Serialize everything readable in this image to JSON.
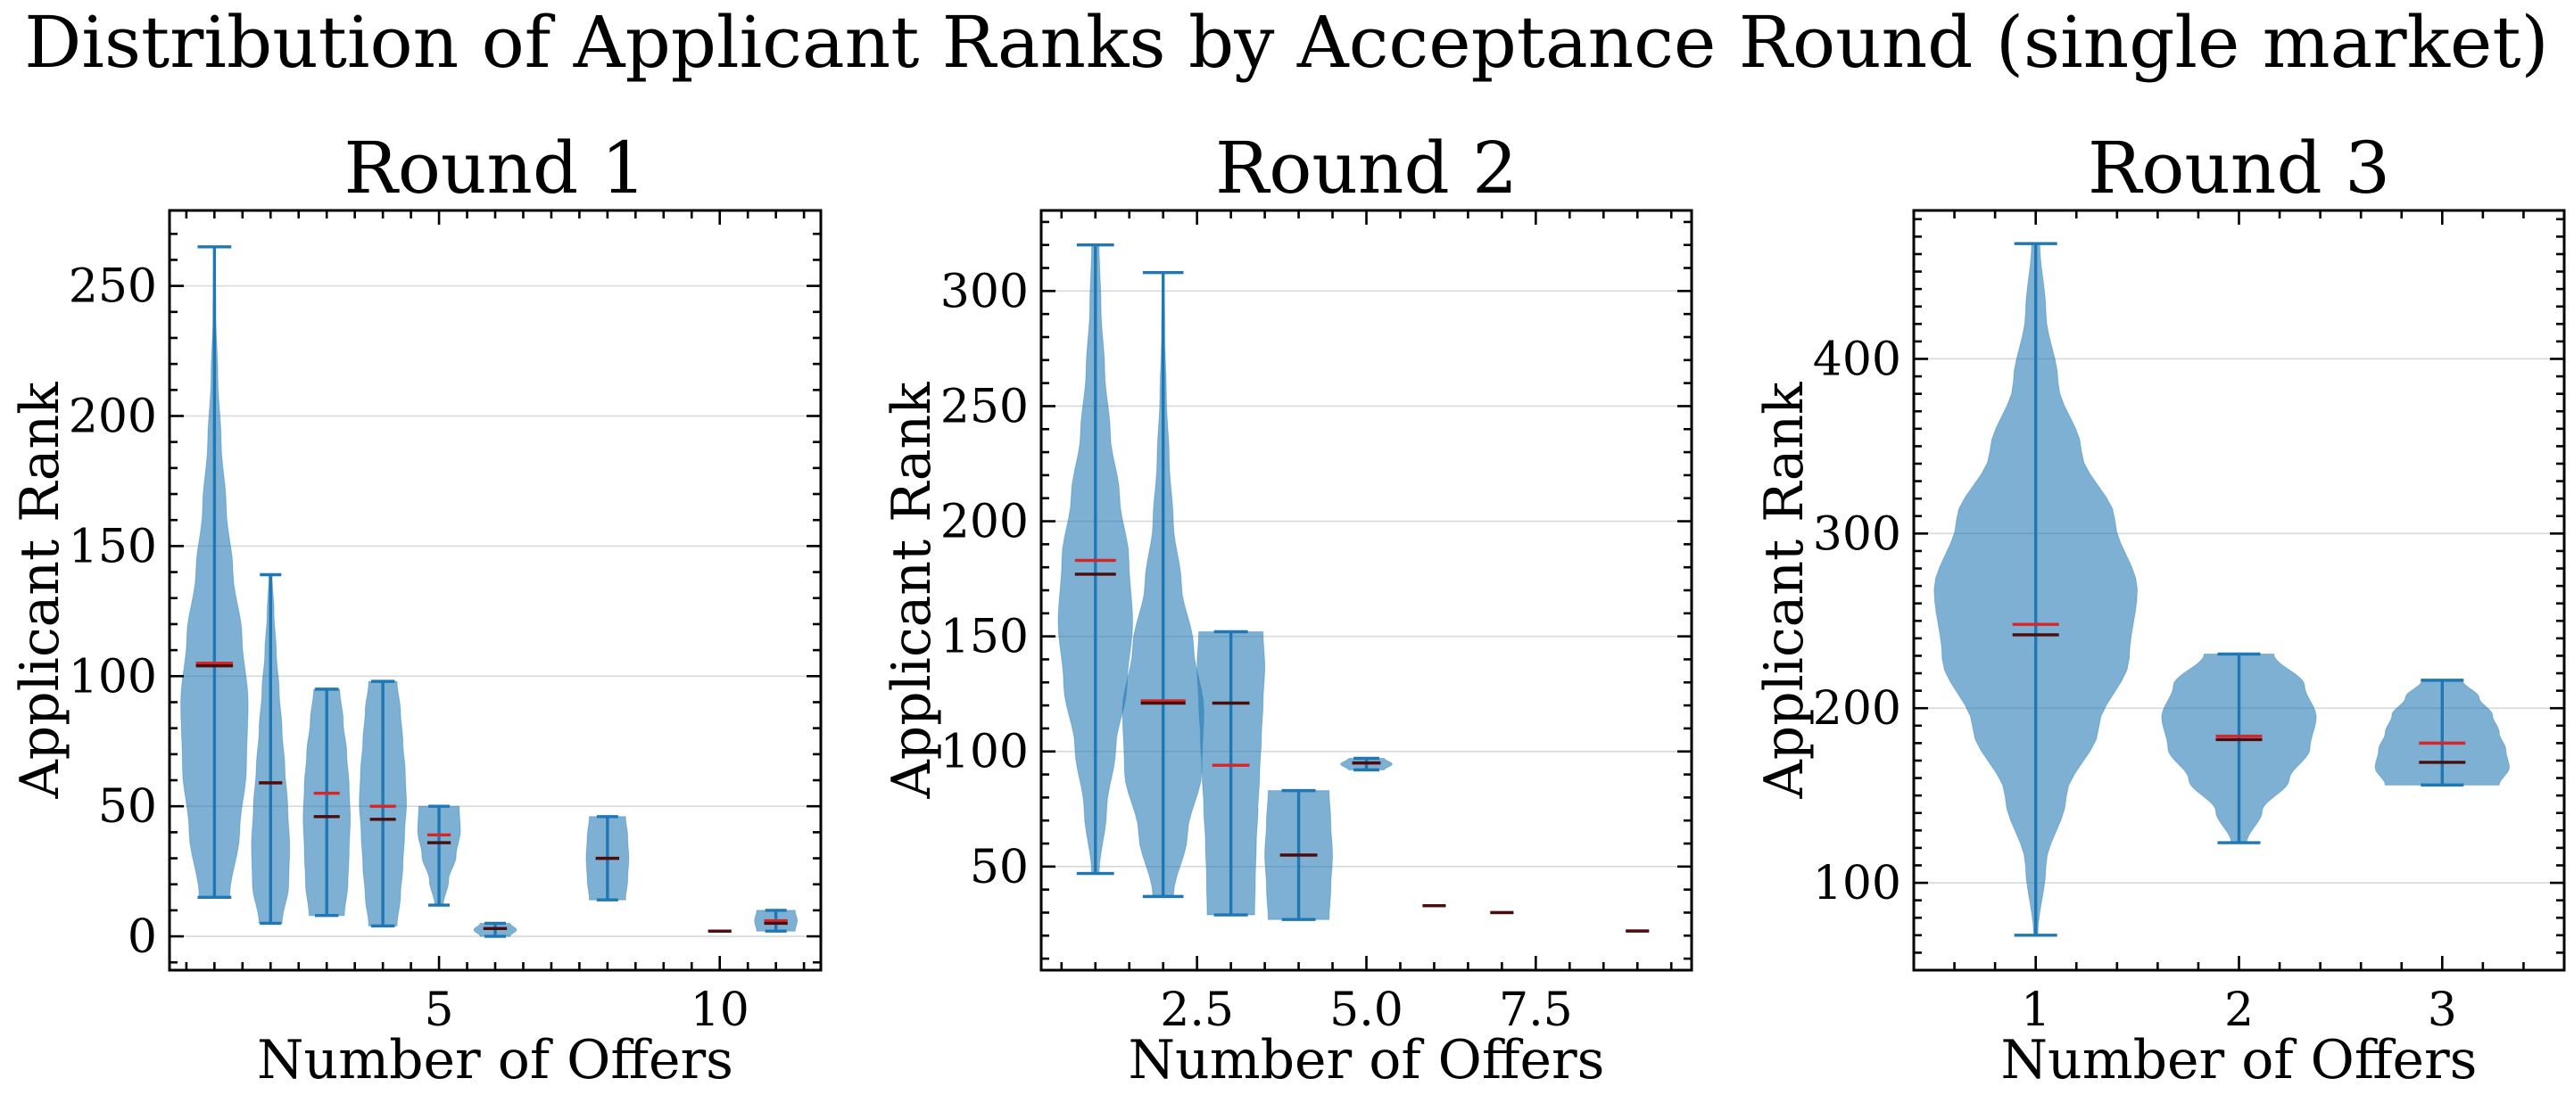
{
  "figure_title": "Distribution of Applicant Ranks by Acceptance Round (single market)",
  "colors": {
    "violin_fill": "#1f77b4",
    "whisker": "#1f77b4",
    "mean_line": "#d62728",
    "median_line": "#4a0d0d",
    "grid": "#d9d9d9"
  },
  "chart_data": [
    {
      "type": "violin",
      "title": "Round 1",
      "xlabel": "Number of Offers",
      "ylabel": "Applicant Rank",
      "xlim": [
        0.2,
        11.8
      ],
      "ylim": [
        -13,
        279
      ],
      "xticks": [
        5,
        10
      ],
      "xtick_labels": [
        "5",
        "10"
      ],
      "yticks": [
        0,
        50,
        100,
        150,
        200,
        250
      ],
      "ytick_labels": [
        "0",
        "50",
        "100",
        "150",
        "200",
        "250"
      ],
      "grid": true,
      "violins": [
        {
          "x": 1,
          "min": 15,
          "max": 265,
          "mean": 105,
          "median": 104,
          "half_width": 0.6,
          "shape": [
            0.45,
            0.75,
            0.95,
            1.0,
            0.82,
            0.55,
            0.35,
            0.2,
            0.1,
            0.04,
            0.02
          ]
        },
        {
          "x": 2,
          "min": 5,
          "max": 139,
          "mean": 59,
          "median": 59,
          "half_width": 0.34,
          "shape": [
            0.6,
            0.95,
            1.0,
            0.9,
            0.75,
            0.6,
            0.45,
            0.3,
            0.18,
            0.08
          ]
        },
        {
          "x": 3,
          "min": 8,
          "max": 95,
          "mean": 55,
          "median": 46,
          "half_width": 0.42,
          "shape": [
            0.75,
            0.9,
            0.95,
            1.0,
            0.95,
            0.85,
            0.7,
            0.55
          ]
        },
        {
          "x": 4,
          "min": 4,
          "max": 98,
          "mean": 50,
          "median": 45,
          "half_width": 0.42,
          "shape": [
            0.6,
            0.75,
            0.85,
            0.92,
            1.0,
            0.95,
            0.85,
            0.75,
            0.6
          ]
        },
        {
          "x": 5,
          "min": 12,
          "max": 50,
          "mean": 39,
          "median": 36,
          "half_width": 0.38,
          "shape": [
            0.2,
            0.45,
            0.8,
            1.0,
            0.95
          ]
        },
        {
          "x": 6,
          "min": 0,
          "max": 5,
          "mean": 3,
          "median": 3,
          "half_width": 0.38,
          "shape": [
            0.7,
            1.0,
            0.7
          ]
        },
        {
          "x": 8,
          "min": 14,
          "max": 46,
          "mean": 30,
          "median": 30,
          "half_width": 0.38,
          "shape": [
            0.85,
            0.95,
            1.0,
            0.95,
            0.85
          ]
        },
        {
          "x": 10,
          "min": 2,
          "max": 2,
          "mean": 2,
          "median": 2,
          "half_width": 0.2,
          "shape": [
            1
          ]
        },
        {
          "x": 11,
          "min": 2,
          "max": 10,
          "mean": 6,
          "median": 5,
          "half_width": 0.38,
          "shape": [
            0.9,
            1.0,
            0.9
          ]
        }
      ]
    },
    {
      "type": "violin",
      "title": "Round 2",
      "xlabel": "Number of Offers",
      "ylabel": "Applicant Rank",
      "xlim": [
        0.2,
        9.8
      ],
      "ylim": [
        5,
        335
      ],
      "xticks": [
        2.5,
        5.0,
        7.5
      ],
      "xtick_labels": [
        "2.5",
        "5.0",
        "7.5"
      ],
      "yticks": [
        50,
        100,
        150,
        200,
        250,
        300
      ],
      "ytick_labels": [
        "50",
        "100",
        "150",
        "200",
        "250",
        "300"
      ],
      "grid": true,
      "violins": [
        {
          "x": 1,
          "min": 47,
          "max": 320,
          "mean": 183,
          "median": 177,
          "half_width": 0.55,
          "shape": [
            0.1,
            0.3,
            0.55,
            0.85,
            1.0,
            0.9,
            0.65,
            0.4,
            0.25,
            0.15,
            0.1
          ]
        },
        {
          "x": 2,
          "min": 37,
          "max": 308,
          "mean": 122,
          "median": 121,
          "half_width": 0.6,
          "shape": [
            0.25,
            0.6,
            0.95,
            1.0,
            0.75,
            0.45,
            0.25,
            0.15,
            0.08,
            0.04,
            0.02
          ]
        },
        {
          "x": 3,
          "min": 29,
          "max": 152,
          "mean": 94,
          "median": 121,
          "half_width": 0.5,
          "shape": [
            0.7,
            0.72,
            0.75,
            0.8,
            0.85,
            0.9,
            0.95,
            1.0,
            0.95
          ]
        },
        {
          "x": 4,
          "min": 27,
          "max": 83,
          "mean": 55,
          "median": 55,
          "half_width": 0.5,
          "shape": [
            0.9,
            0.95,
            1.0,
            0.95,
            0.9
          ]
        },
        {
          "x": 5,
          "min": 92,
          "max": 97,
          "mean": 95,
          "median": 95,
          "half_width": 0.38,
          "shape": [
            0.7,
            1.0,
            0.7
          ]
        },
        {
          "x": 6,
          "min": 33,
          "max": 33,
          "mean": 33,
          "median": 33,
          "half_width": 0.2,
          "shape": [
            1
          ]
        },
        {
          "x": 7,
          "min": 30,
          "max": 30,
          "mean": 30,
          "median": 30,
          "half_width": 0.2,
          "shape": [
            1
          ]
        },
        {
          "x": 9,
          "min": 22,
          "max": 22,
          "mean": 22,
          "median": 22,
          "half_width": 0.2,
          "shape": [
            1
          ]
        }
      ]
    },
    {
      "type": "violin",
      "title": "Round 3",
      "xlabel": "Number of Offers",
      "ylabel": "Applicant Rank",
      "xlim": [
        0.4,
        3.6
      ],
      "ylim": [
        50,
        485
      ],
      "xticks": [
        1,
        2,
        3
      ],
      "xtick_labels": [
        "1",
        "2",
        "3"
      ],
      "yticks": [
        100,
        200,
        300,
        400
      ],
      "ytick_labels": [
        "100",
        "200",
        "300",
        "400"
      ],
      "grid": true,
      "violins": [
        {
          "x": 1,
          "min": 70,
          "max": 466,
          "mean": 248,
          "median": 242,
          "half_width": 0.5,
          "shape": [
            0.02,
            0.1,
            0.3,
            0.62,
            0.92,
            1.0,
            0.78,
            0.45,
            0.22,
            0.1,
            0.04
          ]
        },
        {
          "x": 2,
          "min": 123,
          "max": 231,
          "mean": 184,
          "median": 182,
          "half_width": 0.38,
          "shape": [
            0.1,
            0.3,
            0.65,
            0.92,
            1.0,
            0.85,
            0.45
          ]
        },
        {
          "x": 3,
          "min": 156,
          "max": 216,
          "mean": 180,
          "median": 169,
          "half_width": 0.33,
          "shape": [
            0.85,
            1.0,
            0.95,
            0.85,
            0.75,
            0.55,
            0.3
          ]
        }
      ]
    }
  ]
}
